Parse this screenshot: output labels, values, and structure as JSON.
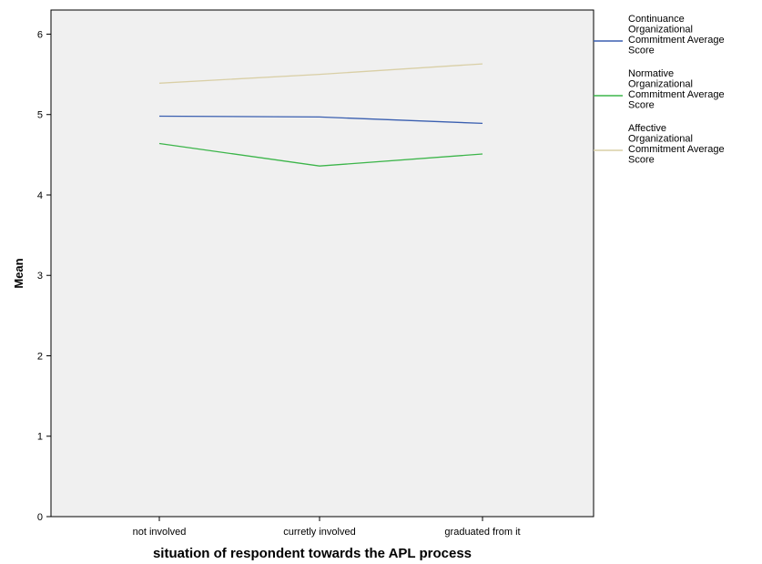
{
  "chart_data": {
    "type": "line",
    "title": "",
    "xlabel": "situation of respondent towards the APL process",
    "ylabel": "Mean",
    "categories": [
      "not involved",
      "curretly involved",
      "graduated from it"
    ],
    "ylim": [
      0,
      6.3
    ],
    "yticks": [
      0,
      1,
      2,
      3,
      4,
      5,
      6
    ],
    "grid": false,
    "legend_position": "right",
    "plot_background": "#f0f0f0",
    "series": [
      {
        "name": "Continuance Organizational Commitment Average Score",
        "legend_lines": [
          "Continuance",
          "Organizational",
          "Commitment Average",
          "Score"
        ],
        "color": "#3a5fb0",
        "values": [
          4.98,
          4.97,
          4.89
        ]
      },
      {
        "name": "Normative Organizational Commitment Average Score",
        "legend_lines": [
          "Normative",
          "Organizational",
          "Commitment Average",
          "Score"
        ],
        "color": "#3cb54a",
        "values": [
          4.64,
          4.36,
          4.51
        ]
      },
      {
        "name": "Affective Organizational Commitment Average Score",
        "legend_lines": [
          "Affective",
          "Organizational",
          "Commitment Average",
          "Score"
        ],
        "color": "#d9cfa6",
        "values": [
          5.39,
          5.5,
          5.63
        ]
      }
    ]
  }
}
